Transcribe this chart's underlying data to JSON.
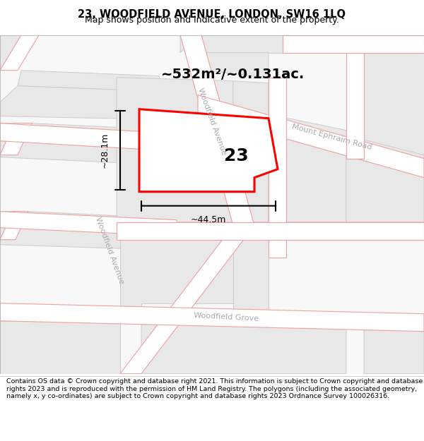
{
  "title": "23, WOODFIELD AVENUE, LONDON, SW16 1LQ",
  "subtitle": "Map shows position and indicative extent of the property.",
  "footer": "Contains OS data © Crown copyright and database right 2021. This information is subject to Crown copyright and database rights 2023 and is reproduced with the permission of HM Land Registry. The polygons (including the associated geometry, namely x, y co-ordinates) are subject to Crown copyright and database rights 2023 Ordnance Survey 100026316.",
  "map_bg": "#f5f5f5",
  "road_fill": "#ffffff",
  "road_edge": "#f0a0a0",
  "block_fill": "#e8e8e8",
  "block_edge": "#cccccc",
  "road_label_color": "#aaaaaa",
  "highlight_edge": "#ff0000",
  "highlight_fill": "#ffffff",
  "area_text": "~532m²/~0.131ac.",
  "width_text": "~44.5m",
  "height_text": "~28.1m",
  "number_text": "23",
  "title_fontsize": 10.5,
  "subtitle_fontsize": 9,
  "footer_fontsize": 6.8,
  "area_fontsize": 14,
  "number_fontsize": 18,
  "dim_fontsize": 9,
  "road_label_fontsize": 8
}
